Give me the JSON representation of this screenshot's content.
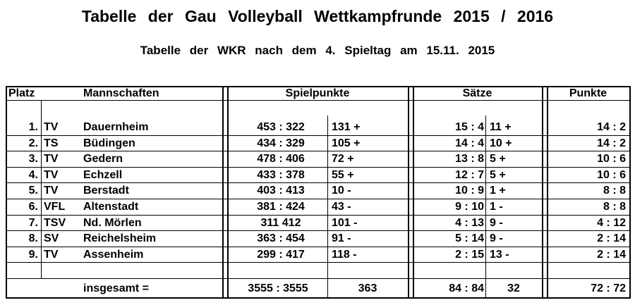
{
  "title": "Tabelle der Gau Volleyball Wettkampfrunde 2015 / 2016",
  "subtitle": "Tabelle der WKR nach dem 4. Spieltag am 15.11. 2015",
  "headers": {
    "platz": "Platz",
    "mannschaften": "Mannschaften",
    "spielpunkte": "Spielpunkte",
    "saetze": "Sätze",
    "punkte": "Punkte"
  },
  "rows": [
    {
      "platz": "1.",
      "prefix": "TV",
      "team": "Dauernheim",
      "spielpunkte": "453 : 322",
      "sp_diff": "131 +",
      "saetze": "15 : 4",
      "s_diff": "11  +",
      "punkte": "14 : 2"
    },
    {
      "platz": "2.",
      "prefix": "TS",
      "team": "Büdingen",
      "spielpunkte": "434 : 329",
      "sp_diff": "105 +",
      "saetze": "14 : 4",
      "s_diff": "10  +",
      "punkte": "14 : 2"
    },
    {
      "platz": "3.",
      "prefix": "TV",
      "team": "Gedern",
      "spielpunkte": "478 : 406",
      "sp_diff": "72  +",
      "saetze": "13 : 8",
      "s_diff": "5  +",
      "punkte": "10 : 6"
    },
    {
      "platz": "4.",
      "prefix": "TV",
      "team": "Echzell",
      "spielpunkte": "433 : 378",
      "sp_diff": "55  +",
      "saetze": "12 : 7",
      "s_diff": "5  +",
      "punkte": "10 : 6"
    },
    {
      "platz": "5.",
      "prefix": "TV",
      "team": "Berstadt",
      "spielpunkte": "403 : 413",
      "sp_diff": "10  -",
      "saetze": "10 : 9",
      "s_diff": "1  +",
      "punkte": "8 : 8"
    },
    {
      "platz": "6.",
      "prefix": "VFL",
      "team": "Altenstadt",
      "spielpunkte": "381 : 424",
      "sp_diff": "43  -",
      "saetze": "9 : 10",
      "s_diff": "1  -",
      "punkte": "8 : 8"
    },
    {
      "platz": "7.",
      "prefix": "TSV",
      "team": "Nd. Mörlen",
      "spielpunkte": "311   412",
      "sp_diff": "101 -",
      "saetze": "4 : 13",
      "s_diff": "9  -",
      "punkte": "4 : 12"
    },
    {
      "platz": "8.",
      "prefix": "SV",
      "team": "Reichelsheim",
      "spielpunkte": "363 : 454",
      "sp_diff": "91  -",
      "saetze": "5 : 14",
      "s_diff": "9  -",
      "punkte": "2 : 14"
    },
    {
      "platz": "9.",
      "prefix": "TV",
      "team": "Assenheim",
      "spielpunkte": "299 : 417",
      "sp_diff": "118 -",
      "saetze": "2 : 15",
      "s_diff": "13  -",
      "punkte": "2 : 14"
    }
  ],
  "total": {
    "label": "insgesamt  =",
    "spielpunkte": "3555 : 3555",
    "sp_diff": "363",
    "saetze": "84 : 84",
    "s_diff": "32",
    "punkte": "72 : 72"
  }
}
